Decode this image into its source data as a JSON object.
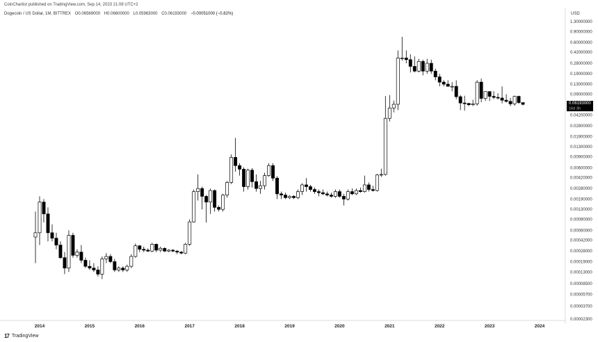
{
  "header": {
    "publisher": "CoinChartist published on TradingView.com, Sep 14, 2023 21:08 UTC+2",
    "symbol": "Dogecoin / US Dollar, 1M, BITTREX",
    "open": "O0.06569000",
    "high": "H0.06600000",
    "low": "L0.05963000",
    "close": "C0.06193000",
    "change": "−0.00051000 (−0.82%)"
  },
  "axis": {
    "currency": "USD",
    "price_label": "0.06193000",
    "countdown_label": "16d 3h"
  },
  "footer": {
    "brand": "TradingView",
    "logo": "17"
  },
  "chart_data": {
    "type": "candlestick",
    "title": "Dogecoin / US Dollar, 1M, BITTREX",
    "yscale": "log",
    "ylim": [
      1.8e-05,
      1.5
    ],
    "y_ticks": [
      "1.30000000",
      "0.90000000",
      "0.60000000",
      "0.42000000",
      "0.28000000",
      "0.19000000",
      "0.13000000",
      "0.09000000",
      "0.06200000",
      "0.04200000",
      "0.02800000",
      "0.01900000",
      "0.01300000",
      "0.00900000",
      "0.00600000",
      "0.00420000",
      "0.00280000",
      "0.00190000",
      "0.00130000",
      "0.00090000",
      "0.00060000",
      "0.00042000",
      "0.00028000",
      "0.00019000",
      "0.00013000",
      "0.00008500",
      "0.00005700",
      "0.00003700",
      "0.00002300"
    ],
    "x_ticks": [
      "2014",
      "2015",
      "2016",
      "2017",
      "2018",
      "2019",
      "2020",
      "2021",
      "2022",
      "2023",
      "2024"
    ],
    "last_price": 0.06193,
    "colors": {
      "up": "#ffffff",
      "down": "#000000",
      "outline": "#000000",
      "price_tag": "#000000"
    },
    "candles": [
      {
        "o": 0.00047,
        "h": 0.0012,
        "l": 0.00018,
        "c": 0.00055
      },
      {
        "o": 0.00055,
        "h": 0.0021,
        "l": 0.00035,
        "c": 0.0017
      },
      {
        "o": 0.0017,
        "h": 0.0019,
        "l": 0.0008,
        "c": 0.0011
      },
      {
        "o": 0.0011,
        "h": 0.0014,
        "l": 0.0004,
        "c": 0.00055
      },
      {
        "o": 0.00055,
        "h": 0.00075,
        "l": 0.0004,
        "c": 0.00045
      },
      {
        "o": 0.00045,
        "h": 0.00055,
        "l": 0.0003,
        "c": 0.00035
      },
      {
        "o": 0.00035,
        "h": 0.0004,
        "l": 0.00021,
        "c": 0.00022
      },
      {
        "o": 0.00022,
        "h": 0.00027,
        "l": 0.00012,
        "c": 0.00015
      },
      {
        "o": 0.00015,
        "h": 0.0006,
        "l": 0.00013,
        "c": 0.0005
      },
      {
        "o": 0.0005,
        "h": 0.00055,
        "l": 0.00022,
        "c": 0.00024
      },
      {
        "o": 0.00024,
        "h": 0.0003,
        "l": 0.00022,
        "c": 0.00027
      },
      {
        "o": 0.00027,
        "h": 0.00035,
        "l": 0.00018,
        "c": 0.0002
      },
      {
        "o": 0.0002,
        "h": 0.00022,
        "l": 0.00015,
        "c": 0.00016
      },
      {
        "o": 0.00016,
        "h": 0.0002,
        "l": 0.00014,
        "c": 0.00015
      },
      {
        "o": 0.00015,
        "h": 0.00018,
        "l": 0.00013,
        "c": 0.00014
      },
      {
        "o": 0.00014,
        "h": 0.00016,
        "l": 0.00011,
        "c": 0.00012
      },
      {
        "o": 0.00012,
        "h": 0.00023,
        "l": 0.0001,
        "c": 0.00021
      },
      {
        "o": 0.00021,
        "h": 0.00026,
        "l": 0.00018,
        "c": 0.00023
      },
      {
        "o": 0.00023,
        "h": 0.00025,
        "l": 0.00018,
        "c": 0.00019
      },
      {
        "o": 0.00019,
        "h": 0.00021,
        "l": 0.00013,
        "c": 0.00014
      },
      {
        "o": 0.00014,
        "h": 0.00016,
        "l": 0.00013,
        "c": 0.00015
      },
      {
        "o": 0.00015,
        "h": 0.00016,
        "l": 0.00013,
        "c": 0.00014
      },
      {
        "o": 0.00014,
        "h": 0.00017,
        "l": 0.00013,
        "c": 0.00016
      },
      {
        "o": 0.00016,
        "h": 0.00025,
        "l": 0.00015,
        "c": 0.00023
      },
      {
        "o": 0.00023,
        "h": 0.00037,
        "l": 0.00022,
        "c": 0.00034
      },
      {
        "o": 0.00034,
        "h": 0.00035,
        "l": 0.00027,
        "c": 0.0003
      },
      {
        "o": 0.0003,
        "h": 0.00033,
        "l": 0.00027,
        "c": 0.00029
      },
      {
        "o": 0.00029,
        "h": 0.00031,
        "l": 0.00027,
        "c": 0.00028
      },
      {
        "o": 0.00028,
        "h": 0.00038,
        "l": 0.00027,
        "c": 0.00036
      },
      {
        "o": 0.00036,
        "h": 0.00037,
        "l": 0.00027,
        "c": 0.00029
      },
      {
        "o": 0.00029,
        "h": 0.00033,
        "l": 0.00027,
        "c": 0.00031
      },
      {
        "o": 0.00031,
        "h": 0.00032,
        "l": 0.00027,
        "c": 0.00028
      },
      {
        "o": 0.00028,
        "h": 0.0003,
        "l": 0.00027,
        "c": 0.00029
      },
      {
        "o": 0.00029,
        "h": 0.0003,
        "l": 0.00027,
        "c": 0.00028
      },
      {
        "o": 0.00028,
        "h": 0.00029,
        "l": 0.00025,
        "c": 0.00027
      },
      {
        "o": 0.00027,
        "h": 0.00028,
        "l": 0.00025,
        "c": 0.00026
      },
      {
        "o": 0.00026,
        "h": 0.00038,
        "l": 0.00025,
        "c": 0.00036
      },
      {
        "o": 0.00036,
        "h": 0.0009,
        "l": 0.00034,
        "c": 0.00082
      },
      {
        "o": 0.00082,
        "h": 0.0027,
        "l": 0.0008,
        "c": 0.0025
      },
      {
        "o": 0.0025,
        "h": 0.0047,
        "l": 0.0018,
        "c": 0.0028
      },
      {
        "o": 0.0028,
        "h": 0.003,
        "l": 0.0013,
        "c": 0.0021
      },
      {
        "o": 0.0021,
        "h": 0.0022,
        "l": 0.0008,
        "c": 0.0017
      },
      {
        "o": 0.0017,
        "h": 0.0028,
        "l": 0.0011,
        "c": 0.0026
      },
      {
        "o": 0.0026,
        "h": 0.0027,
        "l": 0.0012,
        "c": 0.0014
      },
      {
        "o": 0.0014,
        "h": 0.0015,
        "l": 0.0012,
        "c": 0.0013
      },
      {
        "o": 0.0013,
        "h": 0.0023,
        "l": 0.0012,
        "c": 0.0022
      },
      {
        "o": 0.0022,
        "h": 0.0037,
        "l": 0.002,
        "c": 0.0035
      },
      {
        "o": 0.0035,
        "h": 0.0098,
        "l": 0.0033,
        "c": 0.0088
      },
      {
        "o": 0.0088,
        "h": 0.018,
        "l": 0.0052,
        "c": 0.0065
      },
      {
        "o": 0.0065,
        "h": 0.0071,
        "l": 0.0045,
        "c": 0.0057
      },
      {
        "o": 0.0057,
        "h": 0.0061,
        "l": 0.0025,
        "c": 0.003
      },
      {
        "o": 0.003,
        "h": 0.0058,
        "l": 0.0027,
        "c": 0.0055
      },
      {
        "o": 0.0055,
        "h": 0.0059,
        "l": 0.0029,
        "c": 0.0036
      },
      {
        "o": 0.0036,
        "h": 0.0047,
        "l": 0.0025,
        "c": 0.0028
      },
      {
        "o": 0.0028,
        "h": 0.0037,
        "l": 0.0023,
        "c": 0.0031
      },
      {
        "o": 0.0031,
        "h": 0.005,
        "l": 0.0027,
        "c": 0.0045
      },
      {
        "o": 0.0045,
        "h": 0.0071,
        "l": 0.0043,
        "c": 0.0065
      },
      {
        "o": 0.0065,
        "h": 0.0071,
        "l": 0.0037,
        "c": 0.0041
      },
      {
        "o": 0.0041,
        "h": 0.0044,
        "l": 0.0019,
        "c": 0.0023
      },
      {
        "o": 0.0023,
        "h": 0.0025,
        "l": 0.0019,
        "c": 0.0022
      },
      {
        "o": 0.0022,
        "h": 0.0024,
        "l": 0.0019,
        "c": 0.002
      },
      {
        "o": 0.002,
        "h": 0.0022,
        "l": 0.0019,
        "c": 0.0021
      },
      {
        "o": 0.0021,
        "h": 0.0022,
        "l": 0.0019,
        "c": 0.002
      },
      {
        "o": 0.002,
        "h": 0.0027,
        "l": 0.0019,
        "c": 0.0025
      },
      {
        "o": 0.0025,
        "h": 0.0034,
        "l": 0.0022,
        "c": 0.0032
      },
      {
        "o": 0.0032,
        "h": 0.0041,
        "l": 0.0025,
        "c": 0.003
      },
      {
        "o": 0.003,
        "h": 0.0032,
        "l": 0.0025,
        "c": 0.0027
      },
      {
        "o": 0.0027,
        "h": 0.0029,
        "l": 0.0023,
        "c": 0.0025
      },
      {
        "o": 0.0025,
        "h": 0.0027,
        "l": 0.0021,
        "c": 0.0024
      },
      {
        "o": 0.0024,
        "h": 0.0027,
        "l": 0.0022,
        "c": 0.0023
      },
      {
        "o": 0.0023,
        "h": 0.0025,
        "l": 0.0021,
        "c": 0.0022
      },
      {
        "o": 0.0022,
        "h": 0.0024,
        "l": 0.002,
        "c": 0.0021
      },
      {
        "o": 0.0021,
        "h": 0.0027,
        "l": 0.002,
        "c": 0.0025
      },
      {
        "o": 0.0025,
        "h": 0.0027,
        "l": 0.002,
        "c": 0.0021
      },
      {
        "o": 0.0021,
        "h": 0.0023,
        "l": 0.0015,
        "c": 0.0019
      },
      {
        "o": 0.0019,
        "h": 0.0027,
        "l": 0.0018,
        "c": 0.0025
      },
      {
        "o": 0.0025,
        "h": 0.0028,
        "l": 0.0022,
        "c": 0.0023
      },
      {
        "o": 0.0023,
        "h": 0.0028,
        "l": 0.0022,
        "c": 0.0026
      },
      {
        "o": 0.0026,
        "h": 0.0029,
        "l": 0.0024,
        "c": 0.0025
      },
      {
        "o": 0.0025,
        "h": 0.0045,
        "l": 0.0024,
        "c": 0.0032
      },
      {
        "o": 0.0032,
        "h": 0.0035,
        "l": 0.0025,
        "c": 0.0027
      },
      {
        "o": 0.0027,
        "h": 0.0031,
        "l": 0.0025,
        "c": 0.0026
      },
      {
        "o": 0.0026,
        "h": 0.0048,
        "l": 0.0025,
        "c": 0.0046
      },
      {
        "o": 0.0046,
        "h": 0.0058,
        "l": 0.0043,
        "c": 0.0047
      },
      {
        "o": 0.0047,
        "h": 0.084,
        "l": 0.0045,
        "c": 0.037
      },
      {
        "o": 0.037,
        "h": 0.087,
        "l": 0.033,
        "c": 0.054
      },
      {
        "o": 0.054,
        "h": 0.071,
        "l": 0.046,
        "c": 0.062
      },
      {
        "o": 0.062,
        "h": 0.45,
        "l": 0.05,
        "c": 0.34
      },
      {
        "o": 0.34,
        "h": 0.74,
        "l": 0.31,
        "c": 0.34
      },
      {
        "o": 0.34,
        "h": 0.45,
        "l": 0.28,
        "c": 0.32
      },
      {
        "o": 0.32,
        "h": 0.39,
        "l": 0.2,
        "c": 0.25
      },
      {
        "o": 0.25,
        "h": 0.36,
        "l": 0.2,
        "c": 0.21
      },
      {
        "o": 0.21,
        "h": 0.33,
        "l": 0.2,
        "c": 0.3
      },
      {
        "o": 0.3,
        "h": 0.32,
        "l": 0.18,
        "c": 0.21
      },
      {
        "o": 0.21,
        "h": 0.33,
        "l": 0.19,
        "c": 0.28
      },
      {
        "o": 0.28,
        "h": 0.32,
        "l": 0.19,
        "c": 0.21
      },
      {
        "o": 0.21,
        "h": 0.23,
        "l": 0.15,
        "c": 0.17
      },
      {
        "o": 0.17,
        "h": 0.19,
        "l": 0.12,
        "c": 0.14
      },
      {
        "o": 0.14,
        "h": 0.15,
        "l": 0.12,
        "c": 0.13
      },
      {
        "o": 0.13,
        "h": 0.15,
        "l": 0.12,
        "c": 0.12
      },
      {
        "o": 0.12,
        "h": 0.14,
        "l": 0.1,
        "c": 0.12
      },
      {
        "o": 0.12,
        "h": 0.15,
        "l": 0.075,
        "c": 0.082
      },
      {
        "o": 0.082,
        "h": 0.087,
        "l": 0.05,
        "c": 0.065
      },
      {
        "o": 0.065,
        "h": 0.085,
        "l": 0.049,
        "c": 0.064
      },
      {
        "o": 0.064,
        "h": 0.065,
        "l": 0.058,
        "c": 0.061
      },
      {
        "o": 0.061,
        "h": 0.073,
        "l": 0.058,
        "c": 0.063
      },
      {
        "o": 0.063,
        "h": 0.15,
        "l": 0.059,
        "c": 0.14
      },
      {
        "o": 0.14,
        "h": 0.16,
        "l": 0.067,
        "c": 0.077
      },
      {
        "o": 0.077,
        "h": 0.1,
        "l": 0.07,
        "c": 0.099
      },
      {
        "o": 0.099,
        "h": 0.1,
        "l": 0.07,
        "c": 0.083
      },
      {
        "o": 0.083,
        "h": 0.1,
        "l": 0.075,
        "c": 0.08
      },
      {
        "o": 0.08,
        "h": 0.093,
        "l": 0.074,
        "c": 0.078
      },
      {
        "o": 0.078,
        "h": 0.12,
        "l": 0.064,
        "c": 0.072
      },
      {
        "o": 0.072,
        "h": 0.09,
        "l": 0.066,
        "c": 0.069
      },
      {
        "o": 0.069,
        "h": 0.078,
        "l": 0.058,
        "c": 0.063
      },
      {
        "o": 0.063,
        "h": 0.085,
        "l": 0.059,
        "c": 0.083
      },
      {
        "o": 0.083,
        "h": 0.085,
        "l": 0.063,
        "c": 0.066
      },
      {
        "o": 0.066,
        "h": 0.066,
        "l": 0.0596,
        "c": 0.0619
      }
    ]
  }
}
